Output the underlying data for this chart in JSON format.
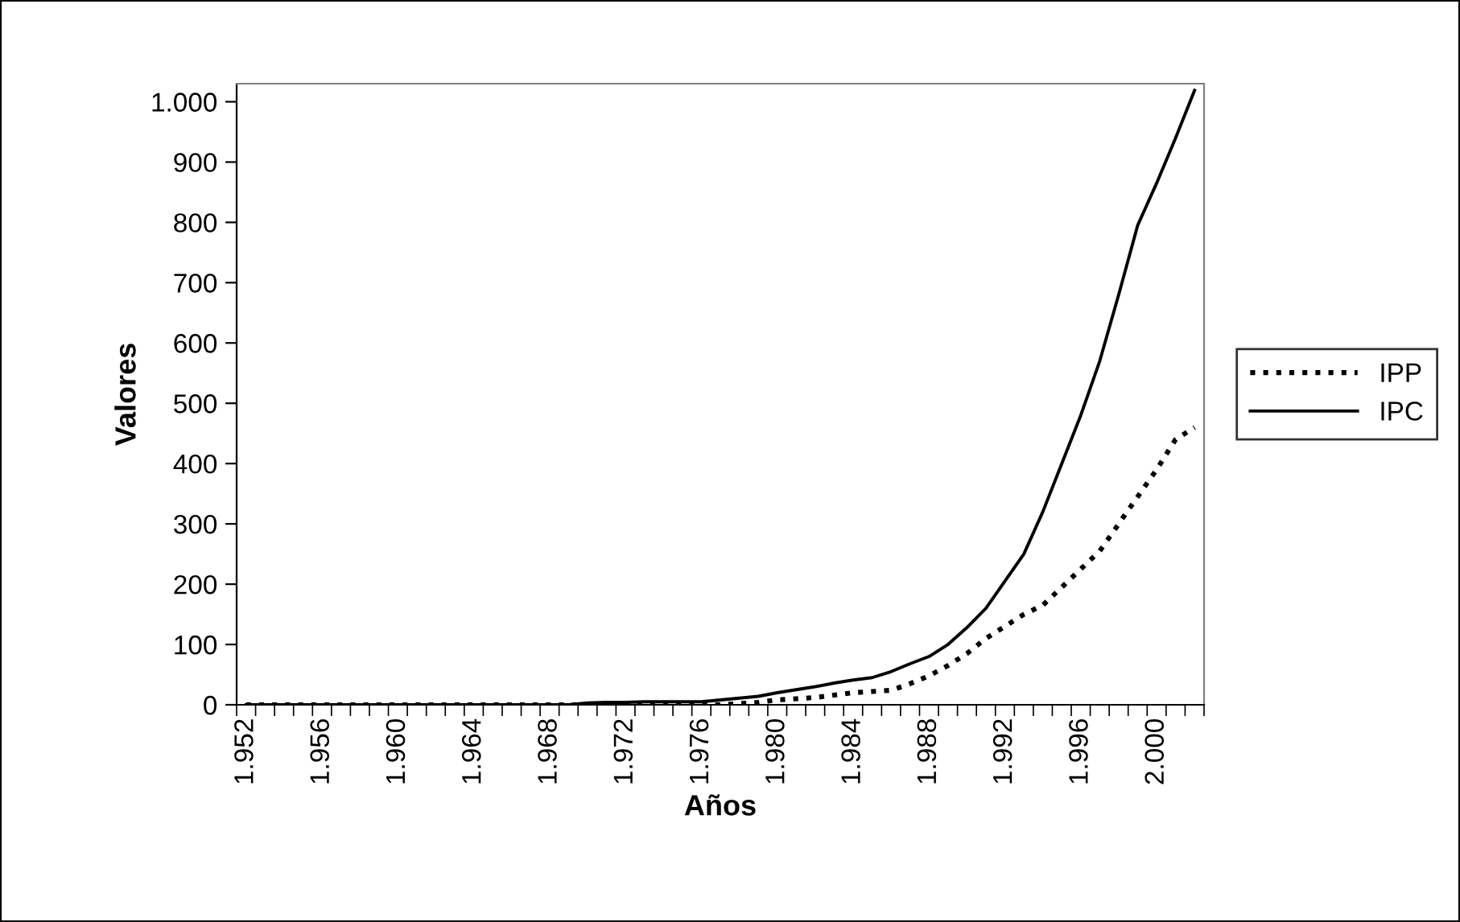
{
  "chart_data": {
    "type": "line",
    "xlabel": "Años",
    "ylabel": "Valores",
    "categories": [
      "1.952",
      null,
      null,
      null,
      "1.956",
      null,
      null,
      null,
      "1.960",
      null,
      null,
      null,
      "1.964",
      null,
      null,
      null,
      "1.968",
      null,
      null,
      null,
      "1.972",
      null,
      null,
      null,
      "1.976",
      null,
      null,
      null,
      "1.980",
      null,
      null,
      null,
      "1.984",
      null,
      null,
      null,
      "1.988",
      null,
      null,
      null,
      "1.992",
      null,
      null,
      null,
      "1.996",
      null,
      null,
      null,
      "2.000",
      null,
      null
    ],
    "series": [
      {
        "name": "IPP",
        "color": "#000000",
        "line_style": "dotted",
        "values": [
          0,
          0,
          0,
          0,
          0,
          0,
          0,
          0,
          0,
          0,
          0,
          0,
          0,
          0,
          0,
          0,
          0,
          0,
          0,
          0,
          0,
          0,
          0,
          0,
          0,
          0,
          2,
          4,
          8,
          10,
          12,
          16,
          20,
          22,
          24,
          35,
          48,
          65,
          85,
          110,
          130,
          150,
          165,
          195,
          225,
          255,
          300,
          345,
          390,
          440,
          460
        ]
      },
      {
        "name": "IPC",
        "color": "#000000",
        "line_style": "solid",
        "values": [
          0,
          0,
          0,
          0,
          0,
          0,
          0,
          0,
          0,
          0,
          0,
          0,
          0,
          0,
          0,
          0,
          0,
          0,
          3,
          4,
          4,
          5,
          5,
          5,
          5,
          8,
          11,
          14,
          20,
          25,
          30,
          36,
          41,
          45,
          55,
          68,
          80,
          100,
          128,
          160,
          205,
          250,
          320,
          400,
          480,
          570,
          680,
          795,
          865,
          940,
          1019
        ]
      }
    ],
    "ylim": [
      0,
      1030
    ],
    "yticks": [
      0,
      100,
      200,
      300,
      400,
      500,
      600,
      700,
      800,
      900,
      {
        "value": 1000,
        "label": "1.000"
      }
    ],
    "grid": false,
    "legend": "right",
    "marker": "none"
  }
}
